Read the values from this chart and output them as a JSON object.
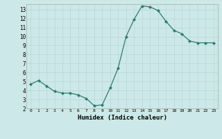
{
  "x": [
    0,
    1,
    2,
    3,
    4,
    5,
    6,
    7,
    8,
    9,
    10,
    11,
    12,
    13,
    14,
    15,
    16,
    17,
    18,
    19,
    20,
    21,
    22,
    23
  ],
  "y": [
    4.7,
    5.1,
    4.5,
    3.9,
    3.7,
    3.7,
    3.5,
    3.1,
    2.3,
    2.4,
    4.3,
    6.5,
    10.0,
    11.9,
    13.4,
    13.3,
    12.9,
    11.7,
    10.7,
    10.3,
    9.5,
    9.3,
    9.3,
    9.3
  ],
  "xlabel": "Humidex (Indice chaleur)",
  "bg_color": "#cce8e8",
  "line_color": "#2e7b6e",
  "grid_color": "#b8d8d8",
  "ylim": [
    2,
    13.6
  ],
  "xlim": [
    -0.5,
    23.5
  ],
  "yticks": [
    2,
    3,
    4,
    5,
    6,
    7,
    8,
    9,
    10,
    11,
    12,
    13
  ],
  "xticks": [
    0,
    1,
    2,
    3,
    4,
    5,
    6,
    7,
    8,
    9,
    10,
    11,
    12,
    13,
    14,
    15,
    16,
    17,
    18,
    19,
    20,
    21,
    22,
    23
  ]
}
